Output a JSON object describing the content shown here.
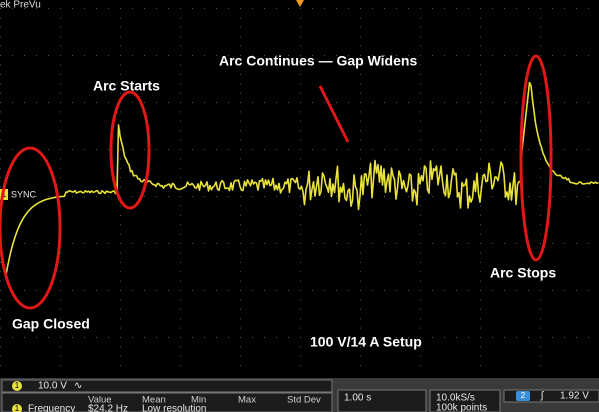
{
  "header": {
    "status": "ek PreVu"
  },
  "screen": {
    "sync_label": "SYNC",
    "channel_marker": "1"
  },
  "annotations": {
    "arc_starts": "Arc Starts",
    "arc_continues": "Arc Continues — Gap Widens",
    "arc_stops": "Arc Stops",
    "gap_closed": "Gap Closed",
    "setup": "100 V/14 A Setup"
  },
  "status_bar": {
    "channel": "1",
    "vertical_scale": "10.0 V",
    "bandwidth_symbol": "∿",
    "measurements": {
      "headers": [
        "Value",
        "Mean",
        "Min",
        "Max",
        "Std Dev"
      ],
      "channel": "1",
      "name": "Frequency",
      "value": "$24.2 Hz",
      "note": "Low resolution"
    },
    "time_scale": "1.00 s",
    "sample_rate": "10.0kS/s",
    "record_length": "100k points",
    "trigger": {
      "source": "2",
      "slope": "ʃ",
      "level": "1.92 V"
    }
  }
}
